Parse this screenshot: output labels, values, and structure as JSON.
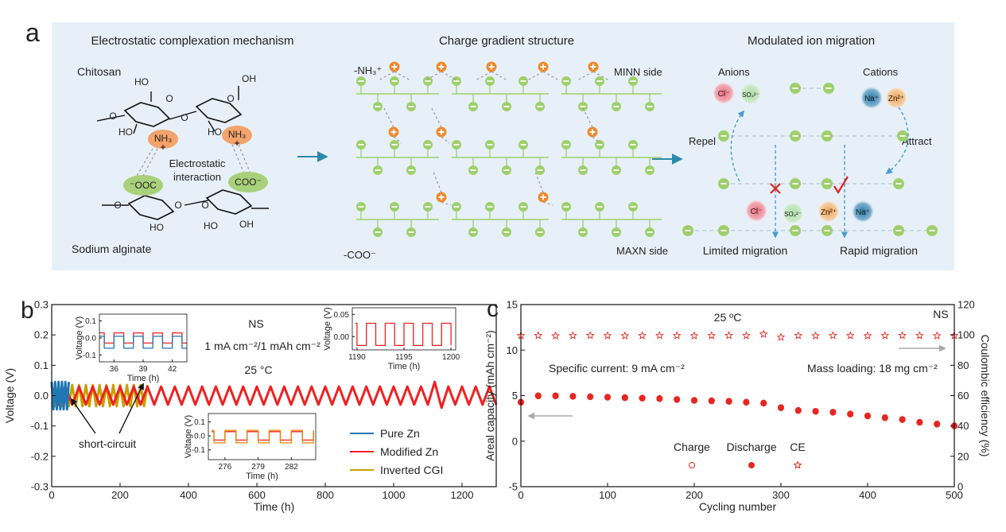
{
  "panel_a": {
    "label": "a",
    "left": {
      "title": "Electrostatic complexation mechanism",
      "top_label": "Chitosan",
      "bottom_label": "Sodium alginate",
      "interaction": [
        "Electrostatic",
        "interaction"
      ],
      "amines": [
        "NH₃",
        "NH₃"
      ],
      "carboxyls": [
        "⁻OOC",
        "COO⁻"
      ],
      "atoms": [
        "HO",
        "OH",
        "O",
        "O",
        "O",
        "O",
        "HO",
        "HO",
        "O",
        "O",
        "O",
        "HO",
        "HO",
        "OH"
      ]
    },
    "middle": {
      "title": "Charge gradient structure",
      "top_group": "-NH₃⁺",
      "top_side": "MINN side",
      "bottom_side": "MAXN side",
      "bottom_group": "-COO⁻"
    },
    "right": {
      "title": "Modulated ion migration",
      "anions": "Anions",
      "cations": "Cations",
      "top_ions": [
        "Cl⁻",
        "SO₄²⁻",
        "Na⁺",
        "Zn²⁺"
      ],
      "bottom_ions": [
        "Cl⁻",
        "SO₄²⁻",
        "Zn²⁺",
        "Na⁺"
      ],
      "repel": "Repel",
      "attract": "Attract",
      "limited": "Limited migration",
      "rapid": "Rapid migration"
    }
  },
  "chart_data": [
    {
      "type": "line",
      "panel_label": "b",
      "xlabel": "Time (h)",
      "ylabel": "Voltage (V)",
      "xlim": [
        0,
        1300
      ],
      "ylim": [
        -0.3,
        0.3
      ],
      "xticks": [
        0,
        200,
        400,
        600,
        800,
        1000,
        1200
      ],
      "yticks": [
        -0.3,
        -0.2,
        -0.1,
        {
          "value": 0,
          "label": "0.0"
        },
        0.1,
        0.2,
        0.3
      ],
      "legend": "lower right",
      "annotations": [
        "NS",
        "1 mA cm⁻²/1 mAh cm⁻²",
        "25 °C",
        "short-circuit"
      ],
      "series": [
        {
          "name": "Pure Zn",
          "color": "#1f77b4",
          "x": [
            0,
            5,
            10,
            15,
            20,
            25,
            30,
            35,
            40,
            45,
            50
          ],
          "values": [
            0.045,
            -0.045,
            0.045,
            -0.045,
            0.045,
            -0.045,
            0.045,
            -0.045,
            0.045,
            -0.045,
            0.045
          ]
        },
        {
          "name": "Modified Zn",
          "color": "#f02020",
          "x": [
            0,
            20,
            40,
            60,
            80,
            100,
            120,
            140,
            160,
            180,
            200,
            220,
            240,
            260,
            280,
            300,
            320,
            340,
            360,
            380,
            400,
            420,
            440,
            460,
            480,
            500,
            520,
            540,
            560,
            580,
            600,
            620,
            640,
            660,
            680,
            700,
            720,
            740,
            760,
            780,
            800,
            820,
            840,
            860,
            880,
            900,
            920,
            940,
            960,
            980,
            1000,
            1020,
            1040,
            1060,
            1080,
            1100,
            1120,
            1140,
            1160,
            1180,
            1200,
            1220,
            1240,
            1260,
            1280,
            1300
          ],
          "values": [
            0.03,
            -0.03,
            0.03,
            -0.03,
            0.03,
            -0.03,
            0.03,
            -0.03,
            0.03,
            -0.03,
            0.03,
            -0.03,
            0.03,
            -0.03,
            0.03,
            -0.03,
            0.03,
            -0.03,
            0.03,
            -0.03,
            0.03,
            -0.03,
            0.03,
            -0.03,
            0.03,
            -0.03,
            0.03,
            -0.03,
            0.03,
            -0.03,
            0.03,
            -0.03,
            0.03,
            -0.03,
            0.03,
            -0.03,
            0.03,
            -0.03,
            0.03,
            -0.03,
            0.03,
            -0.03,
            0.03,
            -0.03,
            0.03,
            -0.03,
            0.03,
            -0.03,
            0.03,
            -0.03,
            0.03,
            -0.03,
            0.03,
            -0.03,
            0.03,
            -0.03,
            0.045,
            -0.04,
            0.03,
            -0.03,
            0.03,
            -0.03,
            0.03,
            -0.03,
            0.03,
            -0.03
          ]
        },
        {
          "name": "Inverted CGI",
          "color": "#c9a000",
          "x": [
            0,
            10,
            20,
            30,
            40,
            50,
            60,
            70,
            80,
            90,
            100,
            110,
            120,
            130,
            140,
            150,
            160,
            170,
            180,
            190,
            200,
            210,
            220,
            230,
            240,
            250,
            260,
            270,
            280
          ],
          "values": [
            0.035,
            -0.035,
            0.035,
            -0.035,
            0.035,
            -0.035,
            0.035,
            -0.035,
            0.035,
            -0.035,
            0.035,
            -0.035,
            0.035,
            -0.035,
            0.035,
            -0.035,
            0.035,
            -0.035,
            0.035,
            -0.035,
            0.035,
            -0.035,
            0.035,
            -0.035,
            0.035,
            -0.035,
            0.035,
            -0.035,
            0.035
          ]
        }
      ]
    },
    {
      "type": "scatter",
      "panel_label": "c",
      "xlabel": "Cycling number",
      "ylabel": "Areal capacity (mAh cm⁻²)",
      "y2label": "Coulombic efficiency (%)",
      "xlim": [
        0,
        500
      ],
      "ylim": [
        -5,
        15
      ],
      "y2lim": [
        0,
        120
      ],
      "xticks": [
        0,
        100,
        200,
        300,
        400,
        500
      ],
      "yticks": [
        -5,
        0,
        5,
        10,
        15
      ],
      "y2ticks": [
        0,
        20,
        40,
        60,
        80,
        100,
        120
      ],
      "legend": "lower center",
      "annotations": [
        "25 ºC",
        "NS",
        "Specific current: 9 mA cm⁻²",
        "Mass loading: 18 mg cm⁻²"
      ],
      "x": [
        0,
        20,
        40,
        60,
        80,
        100,
        120,
        140,
        160,
        180,
        200,
        220,
        240,
        260,
        280,
        300,
        320,
        340,
        360,
        380,
        400,
        420,
        440,
        460,
        480,
        500
      ],
      "series": [
        {
          "name": "Charge",
          "color": "#e8261f",
          "marker": "open-circle",
          "values": [
            4.3,
            5.0,
            5.0,
            4.95,
            4.9,
            4.85,
            4.8,
            4.75,
            4.7,
            4.6,
            4.5,
            4.45,
            4.4,
            4.3,
            4.2,
            3.7,
            3.4,
            3.3,
            3.2,
            3.0,
            2.8,
            2.6,
            2.4,
            2.1,
            1.9,
            1.7
          ]
        },
        {
          "name": "Discharge",
          "color": "#e8261f",
          "marker": "filled-circle",
          "values": [
            4.25,
            4.95,
            4.95,
            4.9,
            4.85,
            4.8,
            4.75,
            4.7,
            4.65,
            4.55,
            4.45,
            4.4,
            4.35,
            4.25,
            4.15,
            3.65,
            3.35,
            3.25,
            3.15,
            2.95,
            2.75,
            2.55,
            2.35,
            2.05,
            1.85,
            1.65
          ]
        },
        {
          "name": "CE",
          "color": "#e8261f",
          "marker": "star",
          "axis": "y2",
          "values": [
            99.5,
            99.6,
            99.4,
            99.5,
            99.6,
            99.5,
            99.4,
            99.5,
            99.6,
            99.5,
            99.4,
            99.5,
            99.6,
            99.5,
            100.5,
            98.5,
            99.5,
            99.4,
            99.6,
            99.5,
            99.4,
            99.5,
            99.6,
            99.5,
            99.4,
            99.5
          ]
        }
      ]
    },
    {
      "type": "line",
      "xlabel": "Time (h)",
      "ylabel": "Voltage (V)",
      "xlim": [
        34.5,
        43.5
      ],
      "ylim": [
        -0.14,
        0.14
      ],
      "xticks": [
        36,
        39,
        42
      ],
      "yticks": [
        -0.1,
        {
          "value": 0,
          "label": "0.0"
        },
        0.1
      ],
      "x": [
        34.5,
        35,
        35,
        36,
        36,
        37,
        37,
        38,
        38,
        39,
        39,
        40,
        40,
        41,
        41,
        42,
        42,
        43,
        43,
        43.5
      ],
      "series": [
        {
          "color": "#f02020",
          "values": [
            0.03,
            0.03,
            -0.03,
            -0.03,
            0.03,
            0.03,
            -0.03,
            -0.03,
            0.03,
            0.03,
            -0.03,
            -0.03,
            0.03,
            0.03,
            -0.03,
            -0.03,
            0.03,
            0.03,
            -0.03,
            -0.03
          ]
        },
        {
          "color": "#1f77b4",
          "values": [
            0.01,
            0.01,
            -0.06,
            -0.06,
            0.01,
            0.01,
            -0.06,
            -0.06,
            0.01,
            0.01,
            -0.06,
            -0.06,
            0.01,
            0.01,
            -0.06,
            -0.06,
            0.01,
            0.01,
            -0.06,
            -0.06
          ]
        }
      ]
    },
    {
      "type": "line",
      "xlabel": "Time (h)",
      "ylabel": "Voltage (V)",
      "xlim": [
        1189.5,
        1200.5
      ],
      "ylim": [
        -0.03,
        0.065
      ],
      "xticks": [
        1190,
        1195,
        1200
      ],
      "yticks": [
        {
          "value": 0,
          "label": "0.00"
        },
        {
          "value": 0.05,
          "label": "0.05"
        }
      ],
      "x": [
        1189.8,
        1190,
        1190,
        1191,
        1191,
        1192,
        1192,
        1193,
        1193,
        1194,
        1194,
        1195,
        1195,
        1196,
        1196,
        1197,
        1197,
        1198,
        1198,
        1199,
        1199,
        1200,
        1200
      ],
      "series": [
        {
          "color": "#f02020",
          "values": [
            0.03,
            0.03,
            -0.02,
            -0.02,
            0.03,
            0.03,
            -0.02,
            -0.02,
            0.03,
            0.03,
            -0.02,
            -0.02,
            0.03,
            0.03,
            -0.02,
            -0.02,
            0.03,
            0.03,
            -0.02,
            -0.02,
            0.03,
            0.03,
            -0.02
          ]
        }
      ]
    },
    {
      "type": "line",
      "xlabel": "Time (h)",
      "ylabel": "Voltage (V)",
      "xlim": [
        274.5,
        284.2
      ],
      "ylim": [
        -0.17,
        0.16
      ],
      "xticks": [
        276,
        279,
        282
      ],
      "yticks": [
        -0.1,
        {
          "value": 0,
          "label": "0.0"
        },
        0.1
      ],
      "x": [
        274.8,
        275,
        275,
        276,
        276,
        277,
        277,
        278,
        278,
        279,
        279,
        280,
        280,
        281,
        281,
        282,
        282,
        283,
        283,
        284,
        284
      ],
      "series": [
        {
          "color": "#f02020",
          "values": [
            0.03,
            0.03,
            -0.03,
            -0.03,
            0.03,
            0.03,
            -0.03,
            -0.03,
            0.03,
            0.03,
            -0.03,
            -0.03,
            0.03,
            0.03,
            -0.03,
            -0.03,
            0.03,
            0.03,
            -0.03,
            -0.03,
            0.03
          ]
        },
        {
          "color": "#e08a00",
          "values": [
            0.04,
            0.04,
            -0.05,
            -0.05,
            0.04,
            0.04,
            -0.05,
            -0.05,
            0.04,
            0.04,
            -0.05,
            -0.05,
            0.04,
            0.04,
            -0.05,
            -0.05,
            0.04,
            0.04,
            -0.05,
            -0.05,
            0.04
          ]
        }
      ]
    }
  ]
}
